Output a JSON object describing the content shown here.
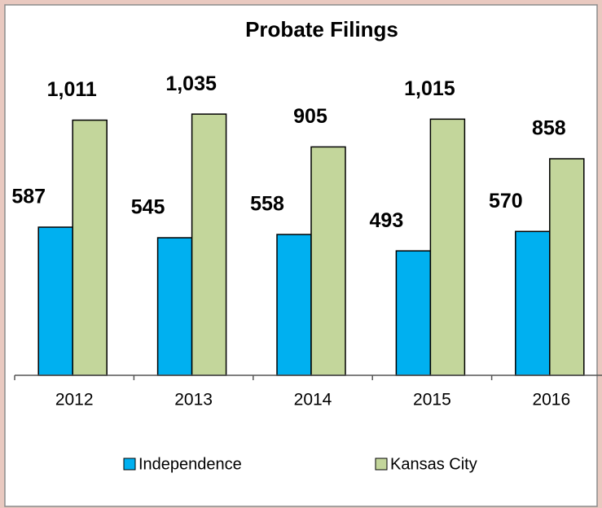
{
  "chart_data": {
    "type": "bar",
    "title": "Probate Filings",
    "categories": [
      "2012",
      "2013",
      "2014",
      "2015",
      "2016"
    ],
    "series": [
      {
        "name": "Independence",
        "color": "#00b0f0",
        "values": [
          587,
          545,
          558,
          493,
          570
        ]
      },
      {
        "name": "Kansas City",
        "color": "#c3d69b",
        "values": [
          1011,
          1035,
          905,
          1015,
          858
        ],
        "value_labels": [
          "1,011",
          "1,035",
          "905",
          "1,015",
          "858"
        ]
      }
    ],
    "legend": "bottom"
  }
}
